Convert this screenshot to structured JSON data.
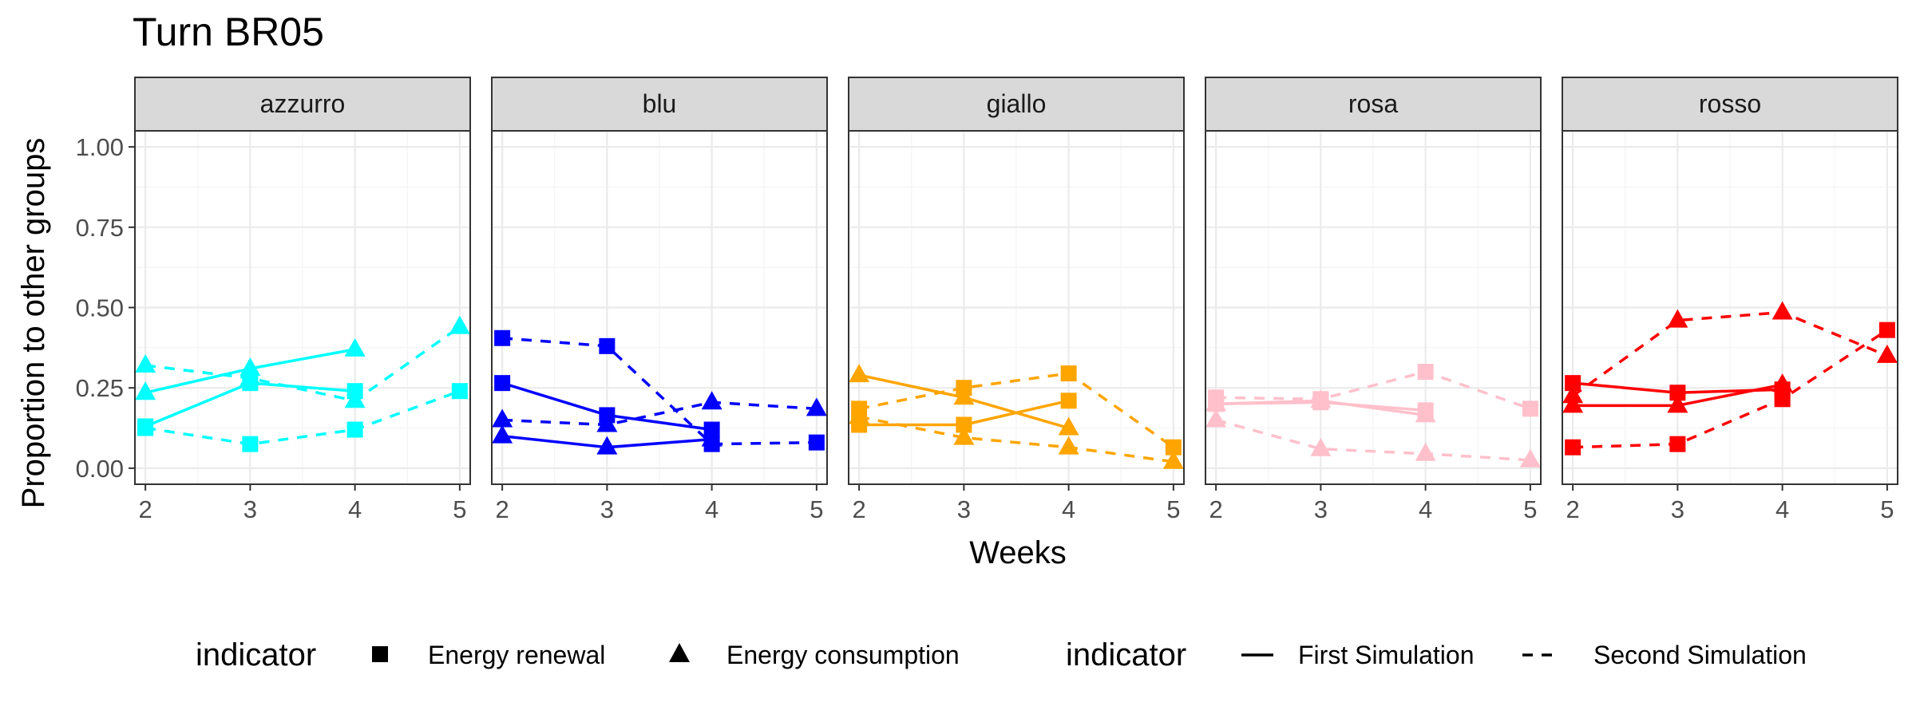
{
  "chart_data": {
    "type": "line",
    "title": "Turn BR05",
    "xlabel": "Weeks",
    "ylabel": "Proportion to other groups",
    "x_ticks": [
      2,
      3,
      4,
      5
    ],
    "y_ticks": [
      "0.00",
      "0.25",
      "0.50",
      "0.75",
      "1.00"
    ],
    "xlim": [
      1.9,
      5.1
    ],
    "ylim": [
      -0.05,
      1.05
    ],
    "grid": true,
    "legend_position": "bottom",
    "legend": {
      "shape": {
        "title": "indicator",
        "items": [
          {
            "label": "Energy renewal",
            "marker": "square"
          },
          {
            "label": "Energy consumption",
            "marker": "triangle"
          }
        ]
      },
      "linetype": {
        "title": "indicator",
        "items": [
          {
            "label": "First Simulation",
            "dash": "solid"
          },
          {
            "label": "Second Simulation",
            "dash": "dashed"
          }
        ]
      }
    },
    "panels": [
      {
        "name": "azzurro",
        "color": "#00ffff",
        "series": [
          {
            "indicator": "Energy renewal",
            "simulation": "First Simulation",
            "x": [
              2,
              3,
              4
            ],
            "y": [
              0.13,
              0.265,
              0.24
            ]
          },
          {
            "indicator": "Energy consumption",
            "simulation": "First Simulation",
            "x": [
              2,
              3,
              4
            ],
            "y": [
              0.235,
              0.31,
              0.37
            ]
          },
          {
            "indicator": "Energy renewal",
            "simulation": "Second Simulation",
            "x": [
              2,
              3,
              4,
              5
            ],
            "y": [
              0.125,
              0.075,
              0.12,
              0.24
            ]
          },
          {
            "indicator": "Energy consumption",
            "simulation": "Second Simulation",
            "x": [
              2,
              3,
              4,
              5
            ],
            "y": [
              0.32,
              0.28,
              0.21,
              0.44
            ]
          }
        ]
      },
      {
        "name": "blu",
        "color": "#0000ff",
        "series": [
          {
            "indicator": "Energy renewal",
            "simulation": "First Simulation",
            "x": [
              2,
              3,
              4
            ],
            "y": [
              0.265,
              0.165,
              0.12
            ]
          },
          {
            "indicator": "Energy consumption",
            "simulation": "First Simulation",
            "x": [
              2,
              3,
              4
            ],
            "y": [
              0.1,
              0.065,
              0.09
            ]
          },
          {
            "indicator": "Energy renewal",
            "simulation": "Second Simulation",
            "x": [
              2,
              3,
              4,
              5
            ],
            "y": [
              0.405,
              0.38,
              0.075,
              0.08
            ]
          },
          {
            "indicator": "Energy consumption",
            "simulation": "Second Simulation",
            "x": [
              2,
              3,
              4,
              5
            ],
            "y": [
              0.15,
              0.135,
              0.205,
              0.185
            ]
          }
        ]
      },
      {
        "name": "giallo",
        "color": "#ffa500",
        "series": [
          {
            "indicator": "Energy renewal",
            "simulation": "First Simulation",
            "x": [
              2,
              3,
              4
            ],
            "y": [
              0.135,
              0.135,
              0.21
            ]
          },
          {
            "indicator": "Energy consumption",
            "simulation": "First Simulation",
            "x": [
              2,
              3,
              4
            ],
            "y": [
              0.29,
              0.22,
              0.125
            ]
          },
          {
            "indicator": "Energy renewal",
            "simulation": "Second Simulation",
            "x": [
              2,
              3,
              4,
              5
            ],
            "y": [
              0.185,
              0.25,
              0.295,
              0.065
            ]
          },
          {
            "indicator": "Energy consumption",
            "simulation": "Second Simulation",
            "x": [
              2,
              3,
              4,
              5
            ],
            "y": [
              0.16,
              0.095,
              0.065,
              0.02
            ]
          }
        ]
      },
      {
        "name": "rosa",
        "color": "#ffc0cb",
        "series": [
          {
            "indicator": "Energy renewal",
            "simulation": "First Simulation",
            "x": [
              2,
              3,
              4
            ],
            "y": [
              0.2,
              0.205,
              0.18
            ]
          },
          {
            "indicator": "Energy consumption",
            "simulation": "First Simulation",
            "x": [
              2,
              3,
              4
            ],
            "y": [
              0.2,
              0.21,
              0.165
            ]
          },
          {
            "indicator": "Energy renewal",
            "simulation": "Second Simulation",
            "x": [
              2,
              3,
              4,
              5
            ],
            "y": [
              0.22,
              0.215,
              0.3,
              0.185
            ]
          },
          {
            "indicator": "Energy consumption",
            "simulation": "Second Simulation",
            "x": [
              2,
              3,
              4,
              5
            ],
            "y": [
              0.15,
              0.06,
              0.045,
              0.025
            ]
          }
        ]
      },
      {
        "name": "rosso",
        "color": "#ff0000",
        "series": [
          {
            "indicator": "Energy renewal",
            "simulation": "First Simulation",
            "x": [
              2,
              3,
              4
            ],
            "y": [
              0.265,
              0.235,
              0.245
            ]
          },
          {
            "indicator": "Energy consumption",
            "simulation": "First Simulation",
            "x": [
              2,
              3,
              4
            ],
            "y": [
              0.195,
              0.195,
              0.26
            ]
          },
          {
            "indicator": "Energy renewal",
            "simulation": "Second Simulation",
            "x": [
              2,
              3,
              4,
              5
            ],
            "y": [
              0.065,
              0.075,
              0.215,
              0.43
            ]
          },
          {
            "indicator": "Energy consumption",
            "simulation": "Second Simulation",
            "x": [
              2,
              3,
              4,
              5
            ],
            "y": [
              0.225,
              0.46,
              0.485,
              0.35
            ]
          }
        ]
      }
    ]
  }
}
